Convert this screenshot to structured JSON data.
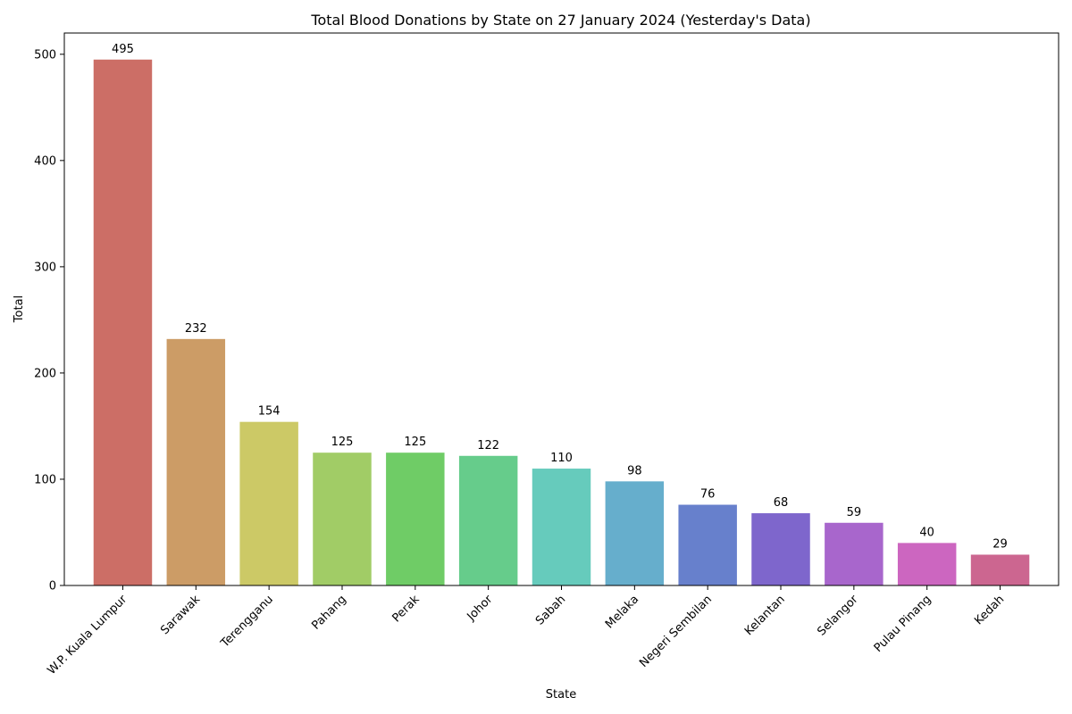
{
  "chart_data": {
    "type": "bar",
    "title": "Total Blood Donations by State on 27 January 2024 (Yesterday's Data)",
    "xlabel": "State",
    "ylabel": "Total",
    "ylim": [
      0,
      520
    ],
    "yticks": [
      0,
      100,
      200,
      300,
      400,
      500
    ],
    "grid": false,
    "legend": "none",
    "categories": [
      "W.P. Kuala Lumpur",
      "Sarawak",
      "Terengganu",
      "Pahang",
      "Perak",
      "Johor",
      "Sabah",
      "Melaka",
      "Negeri Sembilan",
      "Kelantan",
      "Selangor",
      "Pulau Pinang",
      "Kedah"
    ],
    "values": [
      495,
      232,
      154,
      125,
      125,
      122,
      110,
      98,
      76,
      68,
      59,
      40,
      29
    ],
    "colors": [
      "#cc6e66",
      "#cc9c66",
      "#ccc966",
      "#a1cc66",
      "#6fcc66",
      "#66cc8b",
      "#66cbbc",
      "#66aecc",
      "#6780cc",
      "#7e66cc",
      "#a866cc",
      "#cc66c0",
      "#cc6690"
    ]
  }
}
